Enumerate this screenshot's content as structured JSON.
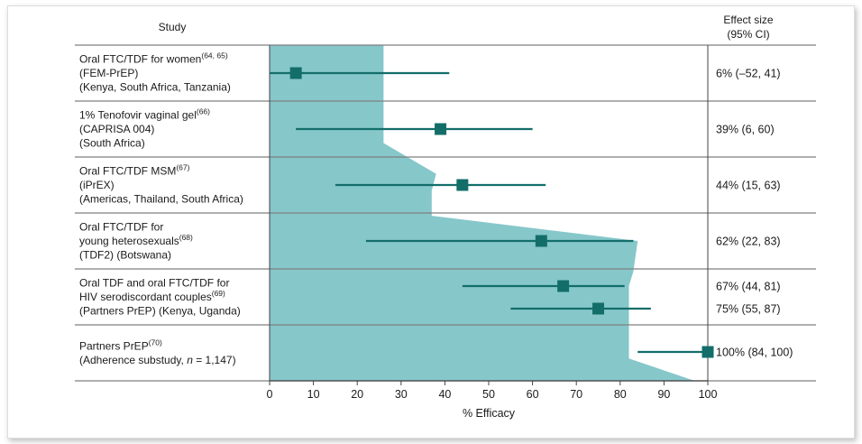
{
  "chart_data": {
    "type": "forest",
    "header": {
      "study": "Study",
      "effect_line1": "Effect size",
      "effect_line2": "(95% CI)"
    },
    "xlabel": "% Efficacy",
    "xlim": [
      0,
      100
    ],
    "xticks": [
      0,
      10,
      20,
      30,
      40,
      50,
      60,
      70,
      80,
      90,
      100
    ],
    "colors": {
      "area": "#86c7ca",
      "marker": "#136e6a",
      "rule": "#7f7f7f"
    },
    "rows": [
      {
        "label_lines": [
          {
            "text": "Oral FTC/TDF for women",
            "sup": "(64, 65)"
          },
          {
            "text": "(FEM-PrEP)"
          },
          {
            "text": "(Kenya, South Africa, Tanzania)"
          }
        ],
        "estimates": [
          {
            "point": 6,
            "ci": [
              -52,
              41
            ],
            "effect_text": "6% (–52, 41)"
          }
        ]
      },
      {
        "label_lines": [
          {
            "text": "1% Tenofovir vaginal gel",
            "sup": "(66)"
          },
          {
            "text": "(CAPRISA 004)"
          },
          {
            "text": "(South Africa)"
          }
        ],
        "estimates": [
          {
            "point": 39,
            "ci": [
              6,
              60
            ],
            "effect_text": "39% (6, 60)"
          }
        ]
      },
      {
        "label_lines": [
          {
            "text": "Oral FTC/TDF MSM",
            "sup": "(67)"
          },
          {
            "text": "(iPrEX)"
          },
          {
            "text": "(Americas, Thailand, South Africa)"
          }
        ],
        "estimates": [
          {
            "point": 44,
            "ci": [
              15,
              63
            ],
            "effect_text": "44% (15, 63)"
          }
        ]
      },
      {
        "label_lines": [
          {
            "text": "Oral FTC/TDF for"
          },
          {
            "text": "young heterosexuals",
            "sup": "(68)"
          },
          {
            "text": "(TDF2) (Botswana)"
          }
        ],
        "estimates": [
          {
            "point": 62,
            "ci": [
              22,
              83
            ],
            "effect_text": "62% (22, 83)"
          }
        ]
      },
      {
        "label_lines": [
          {
            "text": "Oral TDF and oral FTC/TDF for"
          },
          {
            "text": "HIV serodiscordant couples",
            "sup": "(69)"
          },
          {
            "text": "(Partners PrEP) (Kenya, Uganda)"
          }
        ],
        "estimates": [
          {
            "point": 67,
            "ci": [
              44,
              81
            ],
            "effect_text": "67% (44, 81)"
          },
          {
            "point": 75,
            "ci": [
              55,
              87
            ],
            "effect_text": "75% (55, 87)"
          }
        ]
      },
      {
        "label_lines": [
          {
            "text": "Partners PrEP",
            "sup": "(70)"
          },
          {
            "text": "(Adherence substudy, ",
            "italic": "n",
            "after": " = 1,147)"
          }
        ],
        "estimates": [
          {
            "point": 100,
            "ci": [
              84,
              100
            ],
            "effect_text": "100% (84, 100)"
          }
        ]
      }
    ],
    "area_outline_pct": [
      [
        0,
        26
      ],
      [
        1,
        26
      ],
      [
        1.75,
        26
      ],
      [
        2.3,
        38
      ],
      [
        2.6,
        37
      ],
      [
        3.05,
        37
      ],
      [
        3.5,
        84
      ],
      [
        4.05,
        83
      ],
      [
        4.3,
        82
      ],
      [
        5.6,
        82
      ],
      [
        6,
        97
      ],
      [
        6.05,
        97
      ]
    ]
  }
}
